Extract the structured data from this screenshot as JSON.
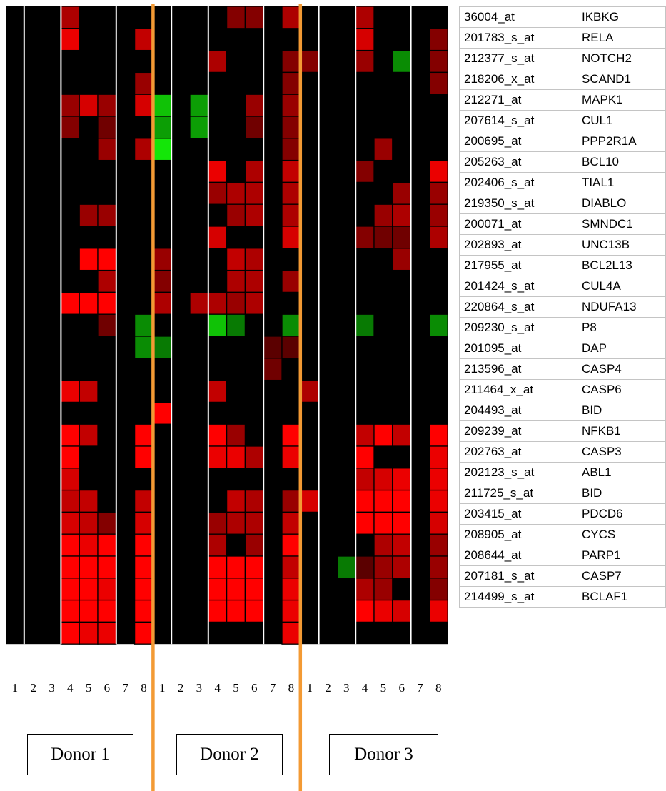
{
  "chart_data": {
    "type": "heatmap",
    "donors": [
      "Donor 1",
      "Donor 2",
      "Donor 3"
    ],
    "column_labels": [
      "1",
      "2",
      "3",
      "4",
      "5",
      "6",
      "7",
      "8"
    ],
    "rows": [
      {
        "probe": "36004_at",
        "gene": "IKBKG"
      },
      {
        "probe": "201783_s_at",
        "gene": "RELA"
      },
      {
        "probe": "212377_s_at",
        "gene": "NOTCH2"
      },
      {
        "probe": "218206_x_at",
        "gene": "SCAND1"
      },
      {
        "probe": "212271_at",
        "gene": "MAPK1"
      },
      {
        "probe": "207614_s_at",
        "gene": "CUL1"
      },
      {
        "probe": "200695_at",
        "gene": "PPP2R1A"
      },
      {
        "probe": "205263_at",
        "gene": "BCL10"
      },
      {
        "probe": "202406_s_at",
        "gene": "TIAL1"
      },
      {
        "probe": "219350_s_at",
        "gene": "DIABLO"
      },
      {
        "probe": "200071_at",
        "gene": "SMNDC1"
      },
      {
        "probe": "202893_at",
        "gene": "UNC13B"
      },
      {
        "probe": "217955_at",
        "gene": "BCL2L13"
      },
      {
        "probe": "201424_s_at",
        "gene": "CUL4A"
      },
      {
        "probe": "220864_s_at",
        "gene": "NDUFA13"
      },
      {
        "probe": "209230_s_at",
        "gene": "P8"
      },
      {
        "probe": "201095_at",
        "gene": "DAP"
      },
      {
        "probe": "213596_at",
        "gene": "CASP4"
      },
      {
        "probe": "211464_x_at",
        "gene": "CASP6"
      },
      {
        "probe": "204493_at",
        "gene": "BID"
      },
      {
        "probe": "209239_at",
        "gene": "NFKB1"
      },
      {
        "probe": "202763_at",
        "gene": "CASP3"
      },
      {
        "probe": "202123_s_at",
        "gene": "ABL1"
      },
      {
        "probe": "211725_s_at",
        "gene": "BID"
      },
      {
        "probe": "203415_at",
        "gene": "PDCD6"
      },
      {
        "probe": "208905_at",
        "gene": "CYCS"
      },
      {
        "probe": "208644_at",
        "gene": "PARP1"
      },
      {
        "probe": "207181_s_at",
        "gene": "CASP7"
      },
      {
        "probe": "214499_s_at",
        "gene": "BCLAF1"
      }
    ],
    "values": [
      [
        0,
        0,
        0,
        0.6,
        0,
        0,
        0,
        0,
        0,
        0,
        0,
        0,
        0.4,
        0.4,
        0,
        0.6,
        0,
        0,
        0,
        0.6,
        0,
        0,
        0,
        0
      ],
      [
        0,
        0,
        0,
        0.9,
        0,
        0,
        0,
        0.7,
        0,
        0,
        0,
        0,
        0,
        0,
        0,
        0,
        0,
        0,
        0,
        0.8,
        0,
        0,
        0,
        0.4
      ],
      [
        0,
        0,
        0,
        0,
        0,
        0,
        0,
        0,
        0,
        0,
        0,
        0.6,
        0,
        0,
        0,
        0.4,
        0.4,
        0,
        0,
        0.5,
        0,
        -0.5,
        0,
        0.4
      ],
      [
        0,
        0,
        0,
        0,
        0,
        0,
        0,
        0.5,
        0,
        0,
        0,
        0,
        0,
        0,
        0,
        0.4,
        0,
        0,
        0,
        0,
        0,
        0,
        0,
        0.4
      ],
      [
        0,
        0,
        0,
        0.5,
        0.8,
        0.5,
        0,
        0.8,
        -0.8,
        0,
        -0.6,
        0,
        0,
        0.5,
        0,
        0.5,
        0,
        0,
        0,
        0,
        0,
        0,
        0,
        0
      ],
      [
        0,
        0,
        0,
        0.4,
        0,
        0.3,
        0,
        0,
        -0.6,
        0,
        -0.6,
        0,
        0,
        0.3,
        0,
        0.4,
        0,
        0,
        0,
        0,
        0,
        0,
        0,
        0
      ],
      [
        0,
        0,
        0,
        0,
        0,
        0.5,
        0,
        0.6,
        -1,
        0,
        0,
        0,
        0,
        0,
        0,
        0.4,
        0,
        0,
        0,
        0,
        0.5,
        0,
        0,
        0
      ],
      [
        0,
        0,
        0,
        0,
        0,
        0,
        0,
        0,
        0,
        0,
        0,
        0.9,
        0,
        0.6,
        0,
        0.7,
        0,
        0,
        0,
        0.4,
        0,
        0,
        0,
        0.9
      ],
      [
        0,
        0,
        0,
        0,
        0,
        0,
        0,
        0,
        0,
        0,
        0,
        0.5,
        0.6,
        0.6,
        0,
        0.6,
        0,
        0,
        0,
        0,
        0,
        0.5,
        0,
        0.5
      ],
      [
        0,
        0,
        0,
        0,
        0.5,
        0.5,
        0,
        0,
        0,
        0,
        0,
        0,
        0.5,
        0.6,
        0,
        0.6,
        0,
        0,
        0,
        0,
        0.5,
        0.6,
        0,
        0.5
      ],
      [
        0,
        0,
        0,
        0,
        0,
        0,
        0,
        0,
        0,
        0,
        0,
        0.8,
        0,
        0,
        0,
        0.8,
        0,
        0,
        0,
        0.4,
        0.3,
        0.3,
        0,
        0.6
      ],
      [
        0,
        0,
        0,
        0,
        1,
        1,
        0,
        0,
        0.5,
        0,
        0,
        0,
        0.7,
        0.6,
        0,
        0,
        0,
        0,
        0,
        0,
        0,
        0.5,
        0,
        0
      ],
      [
        0,
        0,
        0,
        0,
        0,
        0.6,
        0,
        0,
        0.4,
        0,
        0,
        0,
        0.6,
        0.6,
        0,
        0.5,
        0,
        0,
        0,
        0,
        0,
        0,
        0,
        0
      ],
      [
        0,
        0,
        0,
        1,
        1,
        1,
        0,
        0,
        0.6,
        0,
        0.6,
        0.6,
        0.5,
        0.6,
        0,
        0,
        0,
        0,
        0,
        0,
        0,
        0,
        0,
        0
      ],
      [
        0,
        0,
        0,
        0,
        0,
        0.3,
        0,
        -0.5,
        0,
        0,
        0,
        -0.8,
        -0.4,
        0,
        0,
        -0.5,
        0,
        0,
        0,
        -0.4,
        0,
        0,
        0,
        -0.5
      ],
      [
        0,
        0,
        0,
        0,
        0,
        0,
        0,
        -0.5,
        -0.4,
        0,
        0,
        0,
        0,
        0,
        0.2,
        0.2,
        0,
        0,
        0,
        0,
        0,
        0,
        0,
        0
      ],
      [
        0,
        0,
        0,
        0,
        0,
        0,
        0,
        0,
        0,
        0,
        0,
        0,
        0,
        0,
        0.3,
        0,
        0,
        0,
        0,
        0,
        0,
        0,
        0,
        0
      ],
      [
        0,
        0,
        0,
        0.9,
        0.7,
        0,
        0,
        0,
        0,
        0,
        0,
        0.7,
        0,
        0,
        0,
        0,
        0.6,
        0,
        0,
        0,
        0,
        0,
        0,
        0
      ],
      [
        0,
        0,
        0,
        0,
        0,
        0,
        0,
        0,
        1,
        0,
        0,
        0,
        0,
        0,
        0,
        0,
        0,
        0,
        0,
        0,
        0,
        0,
        0,
        0
      ],
      [
        0,
        0,
        0,
        1,
        0.7,
        0,
        0,
        1,
        0,
        0,
        0,
        1,
        0.5,
        0,
        0,
        1,
        0,
        0,
        0,
        0.7,
        1,
        0.7,
        0,
        1
      ],
      [
        0,
        0,
        0,
        1,
        0,
        0,
        0,
        1,
        0,
        0,
        0,
        0.9,
        0.9,
        0.6,
        0,
        0.9,
        0,
        0,
        0,
        1,
        0,
        0,
        0,
        0.9
      ],
      [
        0,
        0,
        0,
        0.8,
        0,
        0,
        0,
        0,
        0,
        0,
        0,
        0,
        0,
        0,
        0,
        0,
        0,
        0,
        0,
        0.7,
        0.8,
        0.9,
        0,
        0.9
      ],
      [
        0,
        0,
        0,
        0.7,
        0.7,
        0,
        0,
        0.7,
        0,
        0,
        0,
        0,
        0.7,
        0.6,
        0,
        0.5,
        0.8,
        0,
        0,
        1,
        1,
        1,
        0,
        0.9
      ],
      [
        0,
        0,
        0,
        0.8,
        0.7,
        0.4,
        0,
        0.8,
        0,
        0,
        0,
        0.5,
        0.6,
        0.6,
        0,
        0.7,
        0,
        0,
        0,
        1,
        1,
        1,
        0,
        0.8
      ],
      [
        0,
        0,
        0,
        1,
        0.9,
        1,
        0,
        1,
        0,
        0,
        0,
        0.6,
        0,
        0.5,
        0,
        1,
        0,
        0,
        0,
        0,
        0.6,
        0.7,
        0,
        0.5
      ],
      [
        0,
        0,
        0,
        1,
        1,
        1,
        0,
        1,
        0,
        0,
        0,
        1,
        1,
        1,
        0,
        0.7,
        0,
        0,
        -0.4,
        0.2,
        0.5,
        0.6,
        0,
        0.5
      ],
      [
        0,
        0,
        0,
        1,
        1,
        0.9,
        0,
        1,
        0,
        0,
        0,
        1,
        1,
        1,
        0,
        0.9,
        0,
        0,
        0,
        0.6,
        0.5,
        0,
        0,
        0.4
      ],
      [
        0,
        0,
        0,
        1,
        1,
        1,
        0,
        1,
        0,
        0,
        0,
        1,
        1,
        1,
        0,
        0.9,
        0,
        0,
        0,
        1,
        0.9,
        0.8,
        0,
        0.9
      ],
      [
        0,
        0,
        0,
        1,
        0.9,
        0.9,
        0,
        1,
        0,
        0,
        0,
        0,
        0,
        0,
        0,
        0.9,
        0,
        0,
        0,
        0,
        0,
        0,
        0,
        0
      ]
    ]
  }
}
